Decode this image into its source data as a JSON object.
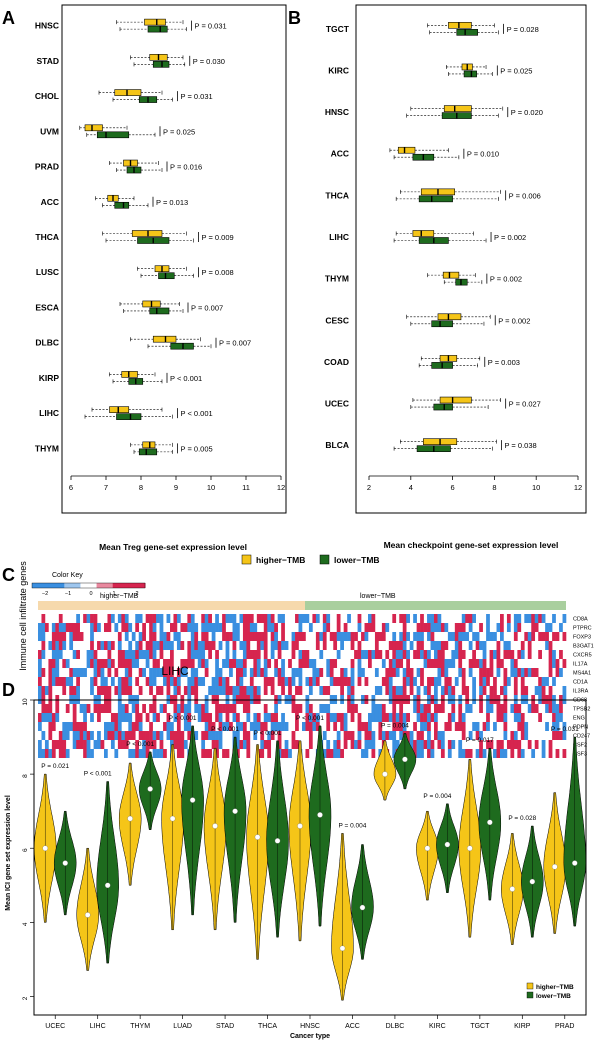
{
  "colors": {
    "higher": "#f5c518",
    "lower": "#1e6b1e",
    "heat_red": "#d6254f",
    "heat_blue": "#3a8fe0",
    "band_higher": "#f6d9ac",
    "band_lower": "#a9cf9e"
  },
  "legend_panels_ab": {
    "higher": "higher−TMB",
    "lower": "lower−TMB"
  },
  "chart_data": [
    {
      "panel": "A",
      "type": "boxplot",
      "orientation": "horizontal",
      "xlabel": "Mean Treg gene-set expression level",
      "xlim": [
        6,
        12
      ],
      "xticks": [
        6,
        7,
        8,
        9,
        10,
        11,
        12
      ],
      "series": [
        "higher−TMB",
        "lower−TMB"
      ],
      "rows": [
        {
          "cancer": "HNSC",
          "p": "P = 0.031",
          "higher": [
            7.3,
            8.1,
            8.45,
            8.7,
            9.2
          ],
          "lower": [
            7.4,
            8.2,
            8.55,
            8.75,
            9.3
          ]
        },
        {
          "cancer": "STAD",
          "p": "P = 0.030",
          "higher": [
            7.7,
            8.25,
            8.5,
            8.75,
            9.2
          ],
          "lower": [
            7.8,
            8.35,
            8.6,
            8.8,
            9.25
          ]
        },
        {
          "cancer": "CHOL",
          "p": "P = 0.031",
          "higher": [
            6.8,
            7.25,
            7.6,
            8.0,
            8.6
          ],
          "lower": [
            7.2,
            7.95,
            8.2,
            8.45,
            8.9
          ]
        },
        {
          "cancer": "UVM",
          "p": "P = 0.025",
          "higher": [
            6.25,
            6.4,
            6.6,
            6.9,
            7.6
          ],
          "lower": [
            6.45,
            6.75,
            7.0,
            7.65,
            8.4
          ]
        },
        {
          "cancer": "PRAD",
          "p": "P = 0.016",
          "higher": [
            7.1,
            7.5,
            7.7,
            7.9,
            8.5
          ],
          "lower": [
            7.3,
            7.6,
            7.8,
            8.0,
            8.6
          ]
        },
        {
          "cancer": "ACC",
          "p": "P = 0.013",
          "higher": [
            6.7,
            7.05,
            7.2,
            7.35,
            7.8
          ],
          "lower": [
            6.9,
            7.25,
            7.5,
            7.65,
            8.2
          ]
        },
        {
          "cancer": "THCA",
          "p": "P = 0.009",
          "higher": [
            6.9,
            7.75,
            8.2,
            8.6,
            9.3
          ],
          "lower": [
            7.0,
            7.9,
            8.35,
            8.8,
            9.5
          ]
        },
        {
          "cancer": "LUSC",
          "p": "P = 0.008",
          "higher": [
            7.9,
            8.4,
            8.6,
            8.8,
            9.3
          ],
          "lower": [
            8.0,
            8.5,
            8.7,
            8.95,
            9.5
          ]
        },
        {
          "cancer": "ESCA",
          "p": "P = 0.007",
          "higher": [
            7.4,
            8.05,
            8.3,
            8.55,
            9.1
          ],
          "lower": [
            7.5,
            8.25,
            8.45,
            8.8,
            9.2
          ]
        },
        {
          "cancer": "DLBC",
          "p": "P = 0.007",
          "higher": [
            7.7,
            8.35,
            8.7,
            9.0,
            9.7
          ],
          "lower": [
            8.2,
            8.85,
            9.2,
            9.5,
            10.0
          ]
        },
        {
          "cancer": "KIRP",
          "p": "P < 0.001",
          "higher": [
            7.1,
            7.45,
            7.65,
            7.9,
            8.4
          ],
          "lower": [
            7.2,
            7.65,
            7.85,
            8.05,
            8.6
          ]
        },
        {
          "cancer": "LIHC",
          "p": "P < 0.001",
          "higher": [
            6.6,
            7.1,
            7.35,
            7.65,
            8.6
          ],
          "lower": [
            6.4,
            7.3,
            7.7,
            8.0,
            8.9
          ]
        },
        {
          "cancer": "THYM",
          "p": "P = 0.005",
          "higher": [
            7.7,
            8.05,
            8.25,
            8.4,
            8.9
          ],
          "lower": [
            7.8,
            7.95,
            8.15,
            8.45,
            8.9
          ]
        }
      ]
    },
    {
      "panel": "B",
      "type": "boxplot",
      "orientation": "horizontal",
      "xlabel": "Mean checkpoint gene-set expression level",
      "xlim": [
        2,
        12
      ],
      "xticks": [
        2,
        4,
        6,
        8,
        10,
        12
      ],
      "series": [
        "higher−TMB",
        "lower−TMB"
      ],
      "rows": [
        {
          "cancer": "TGCT",
          "p": "P = 0.028",
          "higher": [
            4.8,
            5.8,
            6.3,
            6.9,
            8.0
          ],
          "lower": [
            4.9,
            6.2,
            6.6,
            7.2,
            8.2
          ]
        },
        {
          "cancer": "KIRC",
          "p": "P = 0.025",
          "higher": [
            5.7,
            6.45,
            6.7,
            6.95,
            7.6
          ],
          "lower": [
            5.8,
            6.55,
            6.9,
            7.15,
            7.9
          ]
        },
        {
          "cancer": "HNSC",
          "p": "P = 0.020",
          "higher": [
            4.0,
            5.6,
            6.1,
            6.9,
            8.4
          ],
          "lower": [
            3.8,
            5.5,
            6.2,
            6.9,
            8.2
          ]
        },
        {
          "cancer": "ACC",
          "p": "P = 0.010",
          "higher": [
            3.0,
            3.4,
            3.7,
            4.2,
            5.8
          ],
          "lower": [
            3.2,
            4.1,
            4.6,
            5.1,
            6.3
          ]
        },
        {
          "cancer": "THCA",
          "p": "P = 0.006",
          "higher": [
            3.5,
            4.5,
            5.3,
            6.1,
            8.3
          ],
          "lower": [
            3.3,
            4.4,
            5.0,
            6.0,
            8.2
          ]
        },
        {
          "cancer": "LIHC",
          "p": "P = 0.002",
          "higher": [
            3.3,
            4.1,
            4.5,
            5.1,
            7.0
          ],
          "lower": [
            3.2,
            4.4,
            5.1,
            5.8,
            7.6
          ]
        },
        {
          "cancer": "THYM",
          "p": "P = 0.002",
          "higher": [
            4.8,
            5.55,
            5.85,
            6.3,
            7.1
          ],
          "lower": [
            5.6,
            6.15,
            6.4,
            6.7,
            7.4
          ]
        },
        {
          "cancer": "CESC",
          "p": "P = 0.002",
          "higher": [
            3.8,
            5.3,
            5.8,
            6.4,
            7.8
          ],
          "lower": [
            4.0,
            5.0,
            5.4,
            6.0,
            7.5
          ]
        },
        {
          "cancer": "COAD",
          "p": "P = 0.003",
          "higher": [
            4.5,
            5.4,
            5.8,
            6.2,
            7.3
          ],
          "lower": [
            4.4,
            5.0,
            5.5,
            6.0,
            7.2
          ]
        },
        {
          "cancer": "UCEC",
          "p": "P = 0.027",
          "higher": [
            4.1,
            5.4,
            6.0,
            6.9,
            8.3
          ],
          "lower": [
            4.0,
            5.1,
            5.6,
            6.0,
            7.7
          ]
        },
        {
          "cancer": "BLCA",
          "p": "P = 0.038",
          "higher": [
            3.5,
            4.6,
            5.4,
            6.2,
            8.1
          ],
          "lower": [
            3.2,
            4.3,
            5.1,
            5.9,
            7.9
          ]
        }
      ]
    },
    {
      "panel": "C",
      "type": "heatmap",
      "title": "LIHC",
      "ylabel": "Immune cell infiltrate genes",
      "color_key_title": "Color Key",
      "color_key_ticks": [
        "−2",
        "−1",
        "0",
        "1",
        "2"
      ],
      "groups": [
        "higher−TMB",
        "lower−TMB"
      ],
      "genes": [
        "CD8A",
        "PTPRC",
        "FOXP3",
        "B3GAT1",
        "CXCR5",
        "IL17A",
        "MS4A1",
        "CD1A",
        "IL3RA",
        "CD68",
        "TPSB2",
        "ENG",
        "PDPN",
        "CD247",
        "CSF2",
        "CSF3"
      ],
      "n_columns": {
        "higher": 68,
        "lower": 84
      },
      "cell_values": "-1 (below mean, blue), 0 (white), +1 (above mean, red)"
    },
    {
      "panel": "D",
      "type": "violin",
      "xlabel": "Cancer type",
      "ylabel": "Mean ICI gene set expression level",
      "ylim": [
        1.5,
        10
      ],
      "yticks": [
        2,
        4,
        6,
        8,
        10
      ],
      "legend": [
        "higher−TMB",
        "lower−TMB"
      ],
      "categories": [
        {
          "cancer": "UCEC",
          "p": "P = 0.021",
          "higher": {
            "min": 4.0,
            "med": 6.0,
            "max": 8.0
          },
          "lower": {
            "min": 4.2,
            "med": 5.6,
            "max": 7.0
          }
        },
        {
          "cancer": "LIHC",
          "p": "P < 0.001",
          "higher": {
            "min": 2.7,
            "med": 4.2,
            "max": 6.0
          },
          "lower": {
            "min": 2.9,
            "med": 5.0,
            "max": 7.8
          }
        },
        {
          "cancer": "THYM",
          "p": "P < 0.001",
          "higher": {
            "min": 5.0,
            "med": 6.8,
            "max": 8.3
          },
          "lower": {
            "min": 6.5,
            "med": 7.6,
            "max": 8.6
          }
        },
        {
          "cancer": "LUAD",
          "p": "P < 0.001",
          "higher": {
            "min": 3.8,
            "med": 6.8,
            "max": 8.8
          },
          "lower": {
            "min": 4.2,
            "med": 7.3,
            "max": 9.3
          }
        },
        {
          "cancer": "STAD",
          "p": "P < 0.001",
          "higher": {
            "min": 3.8,
            "med": 6.6,
            "max": 8.7
          },
          "lower": {
            "min": 4.0,
            "med": 7.0,
            "max": 9.0
          }
        },
        {
          "cancer": "THCA",
          "p": "P < 0.001",
          "higher": {
            "min": 3.0,
            "med": 6.3,
            "max": 8.8
          },
          "lower": {
            "min": 3.6,
            "med": 6.2,
            "max": 8.9
          }
        },
        {
          "cancer": "HNSC",
          "p": "P < 0.001",
          "higher": {
            "min": 3.5,
            "med": 6.6,
            "max": 8.9
          },
          "lower": {
            "min": 3.9,
            "med": 6.9,
            "max": 9.3
          }
        },
        {
          "cancer": "ACC",
          "p": "P = 0.004",
          "higher": {
            "min": 1.9,
            "med": 3.3,
            "max": 6.4
          },
          "lower": {
            "min": 3.0,
            "med": 4.4,
            "max": 6.1
          }
        },
        {
          "cancer": "DLBC",
          "p": "P = 0.004",
          "higher": {
            "min": 7.3,
            "med": 8.0,
            "max": 8.9
          },
          "lower": {
            "min": 7.6,
            "med": 8.4,
            "max": 9.1
          }
        },
        {
          "cancer": "KIRC",
          "p": "P = 0.004",
          "higher": {
            "min": 4.6,
            "med": 6.0,
            "max": 7.0
          },
          "lower": {
            "min": 4.8,
            "med": 6.1,
            "max": 7.2
          }
        },
        {
          "cancer": "TGCT",
          "p": "P = 0.017",
          "higher": {
            "min": 3.6,
            "med": 6.0,
            "max": 8.4
          },
          "lower": {
            "min": 4.6,
            "med": 6.7,
            "max": 8.7
          }
        },
        {
          "cancer": "KIRP",
          "p": "P = 0.028",
          "higher": {
            "min": 3.4,
            "med": 4.9,
            "max": 6.4
          },
          "lower": {
            "min": 3.6,
            "med": 5.1,
            "max": 6.6
          }
        },
        {
          "cancer": "PRAD",
          "p": "P = 0.031",
          "higher": {
            "min": 3.7,
            "med": 5.5,
            "max": 7.5
          },
          "lower": {
            "min": 3.9,
            "med": 5.6,
            "max": 9.0
          }
        }
      ]
    }
  ]
}
